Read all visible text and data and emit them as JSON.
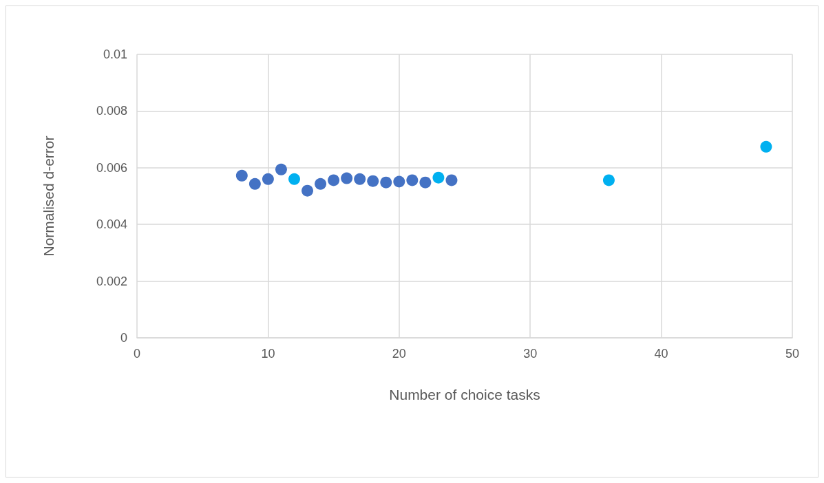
{
  "chart_data": {
    "type": "scatter",
    "xlabel": "Number of choice tasks",
    "ylabel": "Normalised d-error",
    "xlim": [
      0,
      50
    ],
    "xticks": [
      0,
      10,
      20,
      30,
      40,
      50
    ],
    "ylim": [
      0,
      0.01
    ],
    "yticks": [
      0,
      0.002,
      0.004,
      0.006,
      0.008,
      0.01
    ],
    "grid": true,
    "marker": "circle",
    "series": [
      {
        "color": "#4472c4",
        "x": [
          8,
          9,
          10,
          11,
          13,
          14,
          15,
          16,
          17,
          18,
          19,
          20,
          21,
          22,
          24
        ],
        "values": [
          0.00572,
          0.00543,
          0.0056,
          0.00594,
          0.00519,
          0.00543,
          0.00556,
          0.00563,
          0.0056,
          0.00553,
          0.00548,
          0.00551,
          0.00556,
          0.00548,
          0.00556
        ]
      },
      {
        "color": "#00b0f0",
        "x": [
          12,
          23,
          36,
          48
        ],
        "values": [
          0.0056,
          0.00565,
          0.00556,
          0.00674
        ]
      }
    ]
  }
}
